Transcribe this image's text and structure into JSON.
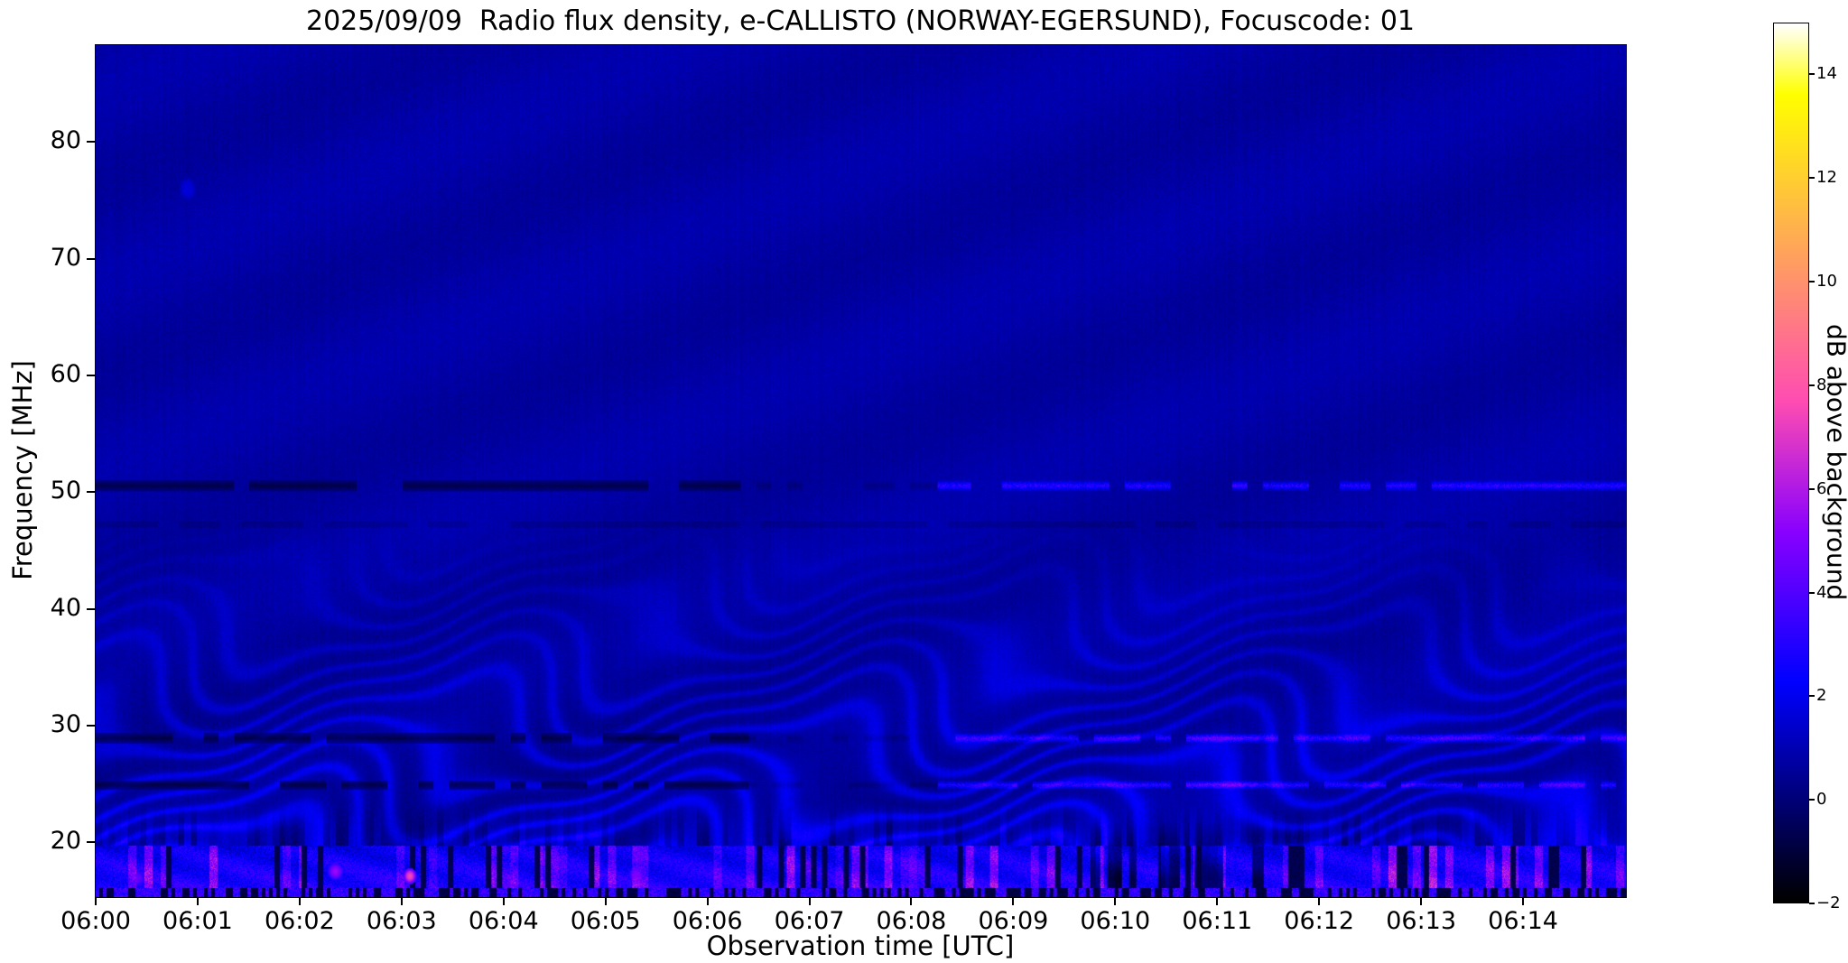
{
  "figure": {
    "background": "#ffffff",
    "frame_color": "#000000"
  },
  "chart_data": {
    "type": "heatmap",
    "chart_kind": "radio-spectrogram",
    "title": "2025/09/09  Radio flux density, e-CALLISTO (NORWAY-EGERSUND), Focuscode: 01",
    "xlabel": "Observation time [UTC]",
    "ylabel": "Frequency [MHz]",
    "x_range_minutes": [
      0,
      15
    ],
    "x_start_time_utc": "06:00",
    "x_end_time_utc": "06:15",
    "x_tick_minutes": [
      0,
      1,
      2,
      3,
      4,
      5,
      6,
      7,
      8,
      9,
      10,
      11,
      12,
      13,
      14
    ],
    "x_tick_labels": [
      "06:00",
      "06:01",
      "06:02",
      "06:03",
      "06:04",
      "06:05",
      "06:06",
      "06:07",
      "06:08",
      "06:09",
      "06:10",
      "06:11",
      "06:12",
      "06:13",
      "06:14"
    ],
    "y_range_mhz": [
      15.4,
      88.3
    ],
    "y_ticks_mhz": [
      20,
      30,
      40,
      50,
      60,
      70,
      80
    ],
    "colorbar": {
      "label": "dB above background",
      "min": -2,
      "max": 15,
      "ticks": [
        -2,
        0,
        2,
        4,
        6,
        8,
        10,
        12,
        14
      ],
      "colormap": "gnuplot2"
    },
    "features": {
      "background_level_db": 0.7,
      "ionospheric_fringes": {
        "below_mhz": 48,
        "typical_db": 2
      },
      "rfi_lines": [
        {
          "freq_mhz": 50.6,
          "half_width_mhz": 0.5
        },
        {
          "freq_mhz": 29.0,
          "half_width_mhz": 0.45
        },
        {
          "freq_mhz": 25.0,
          "half_width_mhz": 0.4
        }
      ],
      "rfi_dark_until_minute": 6.4,
      "rfi_bright_from_minute": 8.25,
      "faint_dark_line_mhz": 47.3,
      "strong_emission_band": {
        "below_mhz": 19.8,
        "peak_db": 8
      },
      "bright_bursts": [
        {
          "minute": 3.08,
          "freq_mhz": 17.2,
          "peak_db": 7.5,
          "dt_s": 4,
          "df_mhz": 0.7
        },
        {
          "minute": 2.35,
          "freq_mhz": 17.6,
          "peak_db": 5.5,
          "dt_s": 5,
          "df_mhz": 0.8
        },
        {
          "minute": 5.3,
          "freq_mhz": 17.3,
          "peak_db": 5.0,
          "dt_s": 5,
          "df_mhz": 0.8
        },
        {
          "minute": 0.4,
          "freq_mhz": 17.0,
          "peak_db": 4.5,
          "dt_s": 6,
          "df_mhz": 0.8
        }
      ],
      "dark_patch": {
        "minutes": [
          9.75,
          11.45
        ],
        "below_mhz": 22
      },
      "faint_blip": {
        "minute": 0.9,
        "freq_mhz": 76.0,
        "db": 1.8
      }
    }
  }
}
